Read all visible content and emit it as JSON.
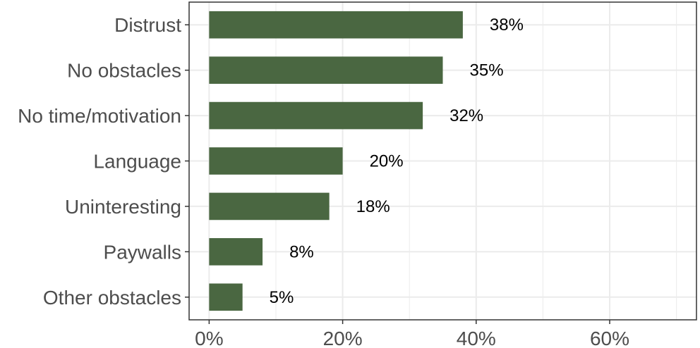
{
  "chart_data": {
    "type": "bar",
    "orientation": "horizontal",
    "title": "",
    "xlabel": "",
    "ylabel": "",
    "categories": [
      "Distrust",
      "No obstacles",
      "No time/motivation",
      "Language",
      "Uninteresting",
      "Paywalls",
      "Other obstacles"
    ],
    "values": [
      38,
      35,
      32,
      20,
      18,
      8,
      5
    ],
    "value_labels": [
      "38%",
      "35%",
      "32%",
      "20%",
      "18%",
      "8%",
      "5%"
    ],
    "xlim": [
      -3,
      73
    ],
    "x_ticks": [
      0,
      20,
      40,
      60
    ],
    "x_tick_labels": [
      "0%",
      "20%",
      "40%",
      "60%"
    ],
    "grid": true,
    "legend": "none",
    "colors": {
      "bar": "#4a6741",
      "grid": "#ebebeb",
      "panel_border": "#333333",
      "axis_text": "#4d4d4d",
      "label_text": "#000000"
    }
  }
}
